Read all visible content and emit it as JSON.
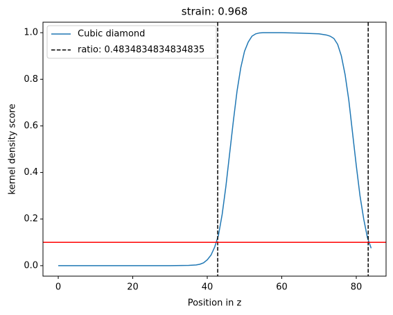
{
  "chart_data": {
    "type": "line",
    "title": "strain: 0.968",
    "xlabel": "Position in z",
    "ylabel": "kernel density score",
    "x": [
      0,
      5,
      10,
      15,
      20,
      25,
      30,
      35,
      37,
      38,
      39,
      40,
      41,
      42,
      43,
      44,
      45,
      46,
      47,
      48,
      49,
      50,
      51,
      52,
      53,
      54,
      55,
      57,
      60,
      65,
      70,
      72,
      73,
      74,
      75,
      76,
      77,
      78,
      79,
      80,
      81,
      82,
      83,
      84
    ],
    "series": [
      {
        "name": "Cubic diamond",
        "color": "#1f77b4",
        "values": [
          0,
          0,
          0,
          0,
          0,
          0,
          0,
          0.001,
          0.003,
          0.006,
          0.012,
          0.025,
          0.045,
          0.08,
          0.13,
          0.22,
          0.34,
          0.48,
          0.62,
          0.75,
          0.85,
          0.92,
          0.96,
          0.985,
          0.995,
          0.999,
          1.0,
          1.0,
          1.0,
          0.998,
          0.995,
          0.99,
          0.985,
          0.975,
          0.95,
          0.9,
          0.82,
          0.71,
          0.57,
          0.43,
          0.3,
          0.2,
          0.12,
          0.075
        ]
      }
    ],
    "vlines": {
      "name": "ratio: 0.4834834834834835",
      "color": "#000000",
      "values": [
        42.8,
        83.2
      ]
    },
    "hline": {
      "value": 0.1,
      "color": "#ff0000"
    },
    "xlim": [
      -4.1,
      88
    ],
    "ylim": [
      -0.045,
      1.045
    ],
    "xticks": [
      0,
      20,
      40,
      60,
      80
    ],
    "yticks": [
      {
        "value": 0,
        "label": "0.0"
      },
      {
        "value": 0.2,
        "label": "0.2"
      },
      {
        "value": 0.4,
        "label": "0.4"
      },
      {
        "value": 0.6,
        "label": "0.6"
      },
      {
        "value": 0.8,
        "label": "0.8"
      },
      {
        "value": 1,
        "label": "1.0"
      }
    ],
    "legend": "upper left"
  }
}
